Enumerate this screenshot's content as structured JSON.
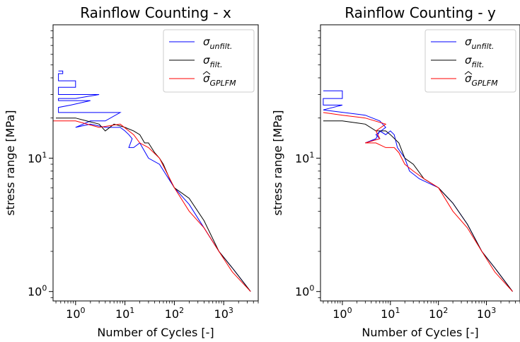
{
  "chart_data": [
    {
      "type": "line",
      "title": "Rainflow Counting - x",
      "xlabel": "Number of Cycles [-]",
      "ylabel": "stress range [MPa]",
      "xscale": "log",
      "yscale": "log",
      "xlim": [
        0.35,
        5000
      ],
      "ylim": [
        0.85,
        100
      ],
      "xticks": [
        {
          "v": 1,
          "base": "10",
          "exp": "0"
        },
        {
          "v": 10,
          "base": "10",
          "exp": "1"
        },
        {
          "v": 100,
          "base": "10",
          "exp": "2"
        },
        {
          "v": 1000,
          "base": "10",
          "exp": "3"
        }
      ],
      "yticks": [
        {
          "v": 1,
          "base": "10",
          "exp": "0"
        },
        {
          "v": 10,
          "base": "10",
          "exp": "1"
        }
      ],
      "legend_position": "top-right",
      "series": [
        {
          "name": "σunfilt.",
          "name_main": "σ",
          "name_sub": "unfilt.",
          "hat": false,
          "color": "#0000ff",
          "points": [
            [
              0.45,
              45
            ],
            [
              0.55,
              45
            ],
            [
              0.55,
              43
            ],
            [
              0.45,
              43
            ],
            [
              0.45,
              38
            ],
            [
              1,
              38
            ],
            [
              1,
              34
            ],
            [
              0.45,
              34
            ],
            [
              0.45,
              30
            ],
            [
              3,
              30
            ],
            [
              1,
              28
            ],
            [
              0.45,
              28
            ],
            [
              0.45,
              27
            ],
            [
              2,
              27
            ],
            [
              0.8,
              25
            ],
            [
              0.45,
              24
            ],
            [
              0.45,
              22
            ],
            [
              8,
              22
            ],
            [
              4,
              19
            ],
            [
              2,
              19
            ],
            [
              1,
              17
            ],
            [
              2,
              18
            ],
            [
              4,
              17
            ],
            [
              8,
              17
            ],
            [
              10,
              16
            ],
            [
              12,
              15
            ],
            [
              14,
              14
            ],
            [
              12,
              12
            ],
            [
              15,
              12
            ],
            [
              20,
              13
            ],
            [
              30,
              10
            ],
            [
              50,
              9
            ],
            [
              100,
              6
            ],
            [
              200,
              4.5
            ],
            [
              400,
              3
            ],
            [
              800,
              2
            ],
            [
              1500,
              1.5
            ],
            [
              3500,
              1
            ]
          ]
        },
        {
          "name": "σfilt.",
          "name_main": "σ",
          "name_sub": "filt.",
          "hat": false,
          "color": "#000000",
          "points": [
            [
              0.4,
              20
            ],
            [
              1,
              20
            ],
            [
              3,
              18
            ],
            [
              4,
              16
            ],
            [
              6,
              18
            ],
            [
              10,
              17
            ],
            [
              15,
              16
            ],
            [
              20,
              15
            ],
            [
              25,
              13
            ],
            [
              30,
              13
            ],
            [
              40,
              11
            ],
            [
              50,
              10
            ],
            [
              60,
              9
            ],
            [
              80,
              7
            ],
            [
              100,
              6
            ],
            [
              200,
              5
            ],
            [
              400,
              3.4
            ],
            [
              800,
              2
            ],
            [
              1500,
              1.5
            ],
            [
              3500,
              1
            ]
          ]
        },
        {
          "name": "σGPLFM",
          "name_main": "σ",
          "name_sub": "GPLFM",
          "hat": true,
          "color": "#ff0000",
          "points": [
            [
              0.35,
              19
            ],
            [
              1,
              19
            ],
            [
              3,
              17
            ],
            [
              8,
              18
            ],
            [
              12,
              16
            ],
            [
              15,
              15
            ],
            [
              20,
              13
            ],
            [
              30,
              12
            ],
            [
              50,
              10
            ],
            [
              100,
              6
            ],
            [
              200,
              4
            ],
            [
              400,
              3
            ],
            [
              800,
              2
            ],
            [
              1500,
              1.4
            ],
            [
              3500,
              1
            ]
          ]
        }
      ]
    },
    {
      "type": "line",
      "title": "Rainflow Counting - y",
      "xlabel": "Number of Cycles [-]",
      "ylabel": "stress range [MPa]",
      "xscale": "log",
      "yscale": "log",
      "xlim": [
        0.35,
        5000
      ],
      "ylim": [
        0.85,
        100
      ],
      "xticks": [
        {
          "v": 1,
          "base": "10",
          "exp": "0"
        },
        {
          "v": 10,
          "base": "10",
          "exp": "1"
        },
        {
          "v": 100,
          "base": "10",
          "exp": "2"
        },
        {
          "v": 1000,
          "base": "10",
          "exp": "3"
        }
      ],
      "yticks": [
        {
          "v": 1,
          "base": "10",
          "exp": "0"
        },
        {
          "v": 10,
          "base": "10",
          "exp": "1"
        }
      ],
      "legend_position": "top-right",
      "series": [
        {
          "name": "σunfilt.",
          "name_main": "σ",
          "name_sub": "unfilt.",
          "hat": false,
          "color": "#0000ff",
          "points": [
            [
              0.4,
              32
            ],
            [
              1,
              32
            ],
            [
              1,
              28
            ],
            [
              0.4,
              28
            ],
            [
              0.4,
              25
            ],
            [
              1,
              25
            ],
            [
              0.4,
              23
            ],
            [
              3,
              21
            ],
            [
              6,
              19
            ],
            [
              8,
              17
            ],
            [
              5,
              15
            ],
            [
              6,
              14
            ],
            [
              3,
              13
            ],
            [
              5,
              14
            ],
            [
              6,
              16
            ],
            [
              8,
              15
            ],
            [
              10,
              16
            ],
            [
              12,
              15
            ],
            [
              14,
              12
            ],
            [
              20,
              10
            ],
            [
              25,
              8
            ],
            [
              40,
              7
            ],
            [
              100,
              6
            ],
            [
              200,
              4.6
            ],
            [
              400,
              3.2
            ],
            [
              800,
              2
            ],
            [
              1500,
              1.5
            ],
            [
              3500,
              1
            ]
          ]
        },
        {
          "name": "σfilt.",
          "name_main": "σ",
          "name_sub": "filt.",
          "hat": false,
          "color": "#000000",
          "points": [
            [
              0.4,
              19
            ],
            [
              1,
              19
            ],
            [
              3,
              18
            ],
            [
              5,
              16
            ],
            [
              8,
              16
            ],
            [
              10,
              15
            ],
            [
              15,
              13
            ],
            [
              20,
              10
            ],
            [
              30,
              9
            ],
            [
              50,
              7
            ],
            [
              100,
              6
            ],
            [
              200,
              4.6
            ],
            [
              400,
              3.2
            ],
            [
              800,
              2
            ],
            [
              1500,
              1.5
            ],
            [
              3500,
              1
            ]
          ]
        },
        {
          "name": "σGPLFM",
          "name_main": "σ",
          "name_sub": "GPLFM",
          "hat": true,
          "color": "#ff0000",
          "points": [
            [
              0.4,
              22
            ],
            [
              1,
              21
            ],
            [
              3,
              20
            ],
            [
              8,
              18
            ],
            [
              5,
              16
            ],
            [
              6,
              14
            ],
            [
              3,
              13
            ],
            [
              5,
              13
            ],
            [
              8,
              12
            ],
            [
              12,
              12
            ],
            [
              15,
              11
            ],
            [
              20,
              9
            ],
            [
              30,
              8
            ],
            [
              50,
              7
            ],
            [
              100,
              6
            ],
            [
              200,
              4
            ],
            [
              400,
              3
            ],
            [
              800,
              2
            ],
            [
              1500,
              1.4
            ],
            [
              3500,
              1
            ]
          ]
        }
      ]
    }
  ]
}
